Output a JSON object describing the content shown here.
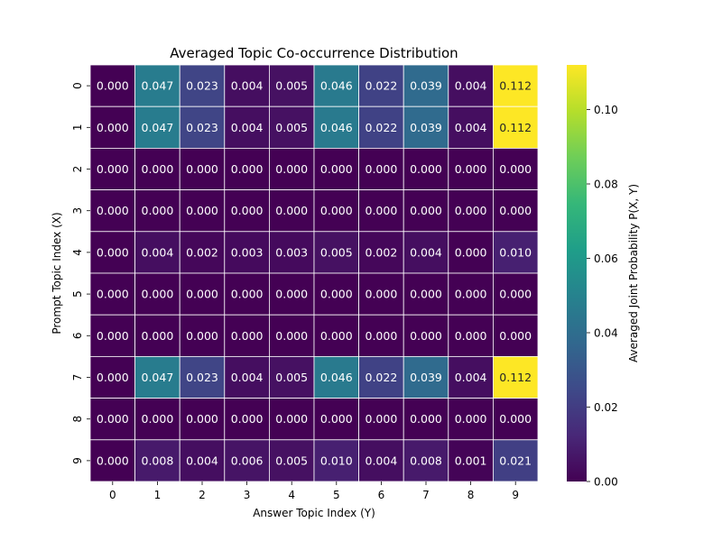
{
  "chart_data": {
    "type": "heatmap",
    "title": "Averaged Topic Co-occurrence Distribution",
    "xlabel": "Answer Topic Index (Y)",
    "ylabel": "Prompt Topic Index (X)",
    "x_categories": [
      "0",
      "1",
      "2",
      "3",
      "4",
      "5",
      "6",
      "7",
      "8",
      "9"
    ],
    "y_categories": [
      "0",
      "1",
      "2",
      "3",
      "4",
      "5",
      "6",
      "7",
      "8",
      "9"
    ],
    "values": [
      [
        0.0,
        0.047,
        0.023,
        0.004,
        0.005,
        0.046,
        0.022,
        0.039,
        0.004,
        0.112
      ],
      [
        0.0,
        0.047,
        0.023,
        0.004,
        0.005,
        0.046,
        0.022,
        0.039,
        0.004,
        0.112
      ],
      [
        0.0,
        0.0,
        0.0,
        0.0,
        0.0,
        0.0,
        0.0,
        0.0,
        0.0,
        0.0
      ],
      [
        0.0,
        0.0,
        0.0,
        0.0,
        0.0,
        0.0,
        0.0,
        0.0,
        0.0,
        0.0
      ],
      [
        0.0,
        0.004,
        0.002,
        0.003,
        0.003,
        0.005,
        0.002,
        0.004,
        0.0,
        0.01
      ],
      [
        0.0,
        0.0,
        0.0,
        0.0,
        0.0,
        0.0,
        0.0,
        0.0,
        0.0,
        0.0
      ],
      [
        0.0,
        0.0,
        0.0,
        0.0,
        0.0,
        0.0,
        0.0,
        0.0,
        0.0,
        0.0
      ],
      [
        0.0,
        0.047,
        0.023,
        0.004,
        0.005,
        0.046,
        0.022,
        0.039,
        0.004,
        0.112
      ],
      [
        0.0,
        0.0,
        0.0,
        0.0,
        0.0,
        0.0,
        0.0,
        0.0,
        0.0,
        0.0
      ],
      [
        0.0,
        0.008,
        0.004,
        0.006,
        0.005,
        0.01,
        0.004,
        0.008,
        0.001,
        0.021
      ]
    ],
    "value_format_decimals": 3,
    "colormap": "viridis",
    "colorbar": {
      "label": "Averaged Joint Probability P(X, Y)",
      "range": [
        0,
        0.112
      ],
      "ticks": [
        0.0,
        0.02,
        0.04,
        0.06,
        0.08,
        0.1
      ],
      "tick_labels": [
        "0.00",
        "0.02",
        "0.04",
        "0.06",
        "0.08",
        "0.10"
      ]
    },
    "grid": false
  }
}
